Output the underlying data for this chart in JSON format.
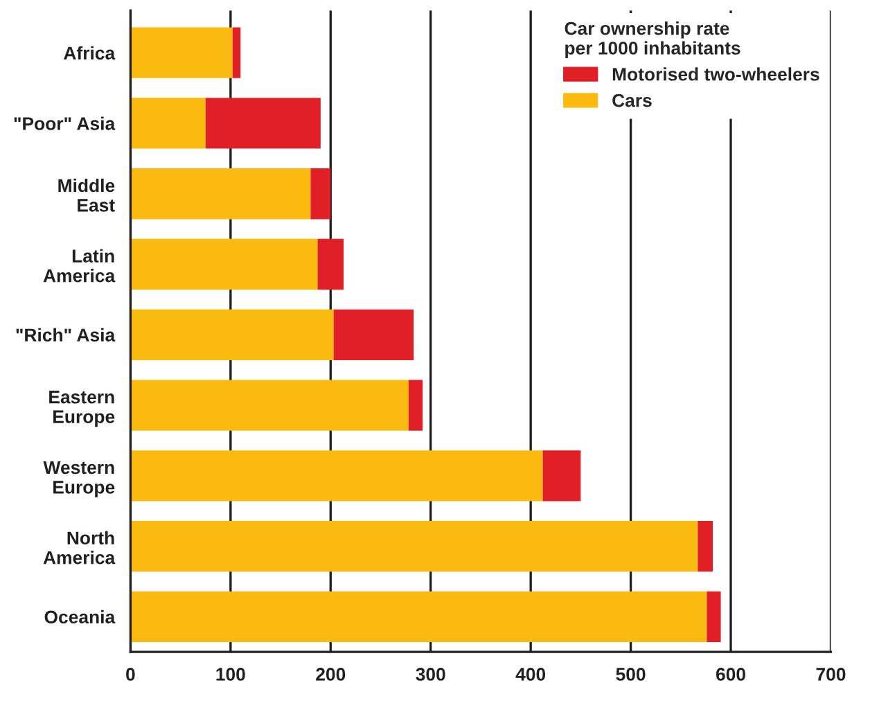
{
  "chart_data": {
    "type": "bar",
    "orientation": "horizontal",
    "stacked": true,
    "categories": [
      "Africa",
      "\"Poor\" Asia",
      "Middle\nEast",
      "Latin\nAmerica",
      "\"Rich\" Asia",
      "Eastern\nEurope",
      "Western\nEurope",
      "North\nAmerica",
      "Oceania"
    ],
    "series": [
      {
        "name": "Cars",
        "color": "#fbba10",
        "values": [
          102,
          75,
          180,
          187,
          203,
          278,
          412,
          567,
          576
        ]
      },
      {
        "name": "Motorised two-wheelers",
        "color": "#e01f26",
        "values": [
          8,
          115,
          20,
          26,
          80,
          14,
          38,
          15,
          14
        ]
      }
    ],
    "legend_title": "Car ownership rate\nper 1000 inhabitants",
    "legend": "top right",
    "xlim": [
      0,
      700
    ],
    "xticks": [
      0,
      100,
      200,
      300,
      400,
      500,
      600,
      700
    ],
    "grid": "x"
  }
}
